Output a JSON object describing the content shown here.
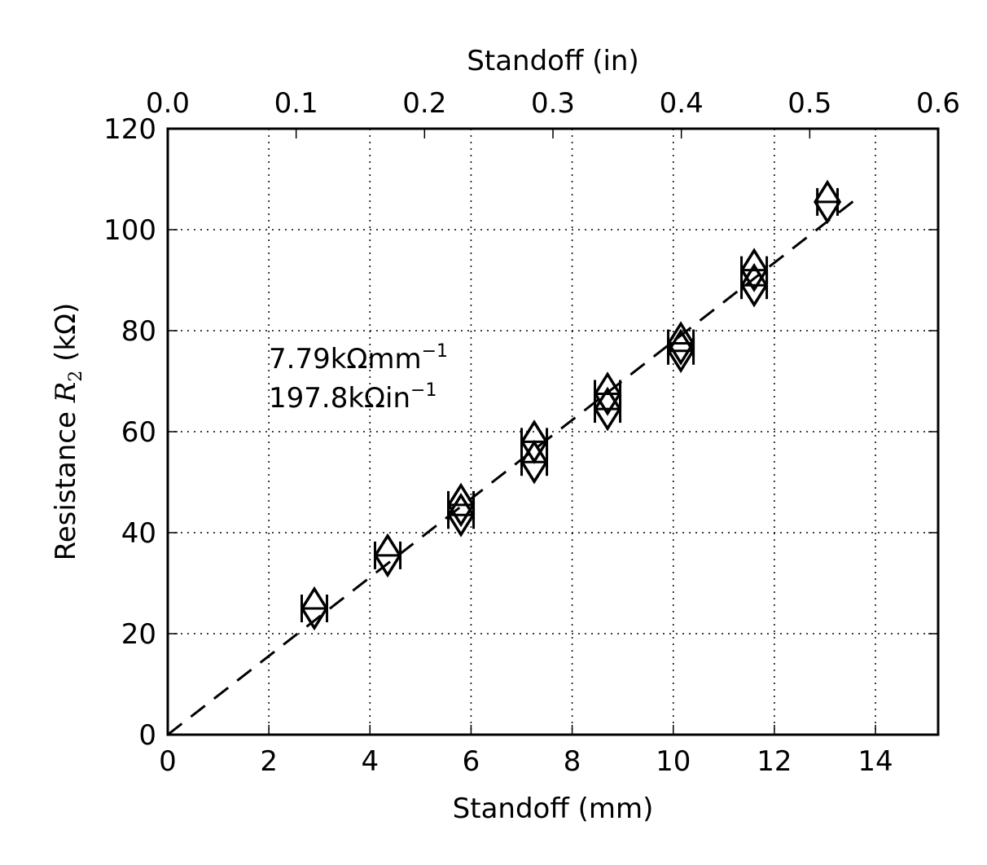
{
  "chart_data": {
    "type": "scatter",
    "xlabel": "Standoff (mm)",
    "x2label": "Standoff (in)",
    "ylabel": {
      "prefix": "Resistance ",
      "symbol": "R",
      "subscript": "2",
      "unit": " (kΩ)"
    },
    "xlim": [
      0,
      15.24
    ],
    "x2lim": [
      0,
      0.6
    ],
    "ylim": [
      0,
      120
    ],
    "xticks": [
      0,
      2,
      4,
      6,
      8,
      10,
      12,
      14
    ],
    "x2ticks": [
      "0.0",
      "0.1",
      "0.2",
      "0.3",
      "0.4",
      "0.5",
      "0.6"
    ],
    "yticks": [
      0,
      20,
      40,
      60,
      80,
      100,
      120
    ],
    "grid": true,
    "marker": "diamond",
    "points": [
      {
        "x": 2.9,
        "y": 25,
        "xerr": 0.25
      },
      {
        "x": 4.35,
        "y": 35.5,
        "xerr": 0.25
      },
      {
        "x": 5.8,
        "y": 45.5,
        "xerr": 0.25
      },
      {
        "x": 5.8,
        "y": 43.5,
        "xerr": 0.25
      },
      {
        "x": 7.25,
        "y": 58,
        "xerr": 0.25
      },
      {
        "x": 7.25,
        "y": 54,
        "xerr": 0.25
      },
      {
        "x": 8.7,
        "y": 67.5,
        "xerr": 0.25
      },
      {
        "x": 8.7,
        "y": 64.5,
        "xerr": 0.25
      },
      {
        "x": 10.15,
        "y": 77.5,
        "xerr": 0.25
      },
      {
        "x": 10.15,
        "y": 76,
        "xerr": 0.25
      },
      {
        "x": 11.6,
        "y": 92,
        "xerr": 0.25
      },
      {
        "x": 11.6,
        "y": 89,
        "xerr": 0.25
      },
      {
        "x": 13.05,
        "y": 105.5,
        "xerr": 0.2
      }
    ],
    "fit": {
      "style": "dashed",
      "x": [
        0,
        13.7
      ],
      "y": [
        0,
        106.7
      ]
    },
    "annotations": [
      {
        "number": "7.79",
        "unit": "kΩmm",
        "exponent": "−1"
      },
      {
        "number": "197.8",
        "unit": "kΩin",
        "exponent": "−1"
      }
    ]
  }
}
